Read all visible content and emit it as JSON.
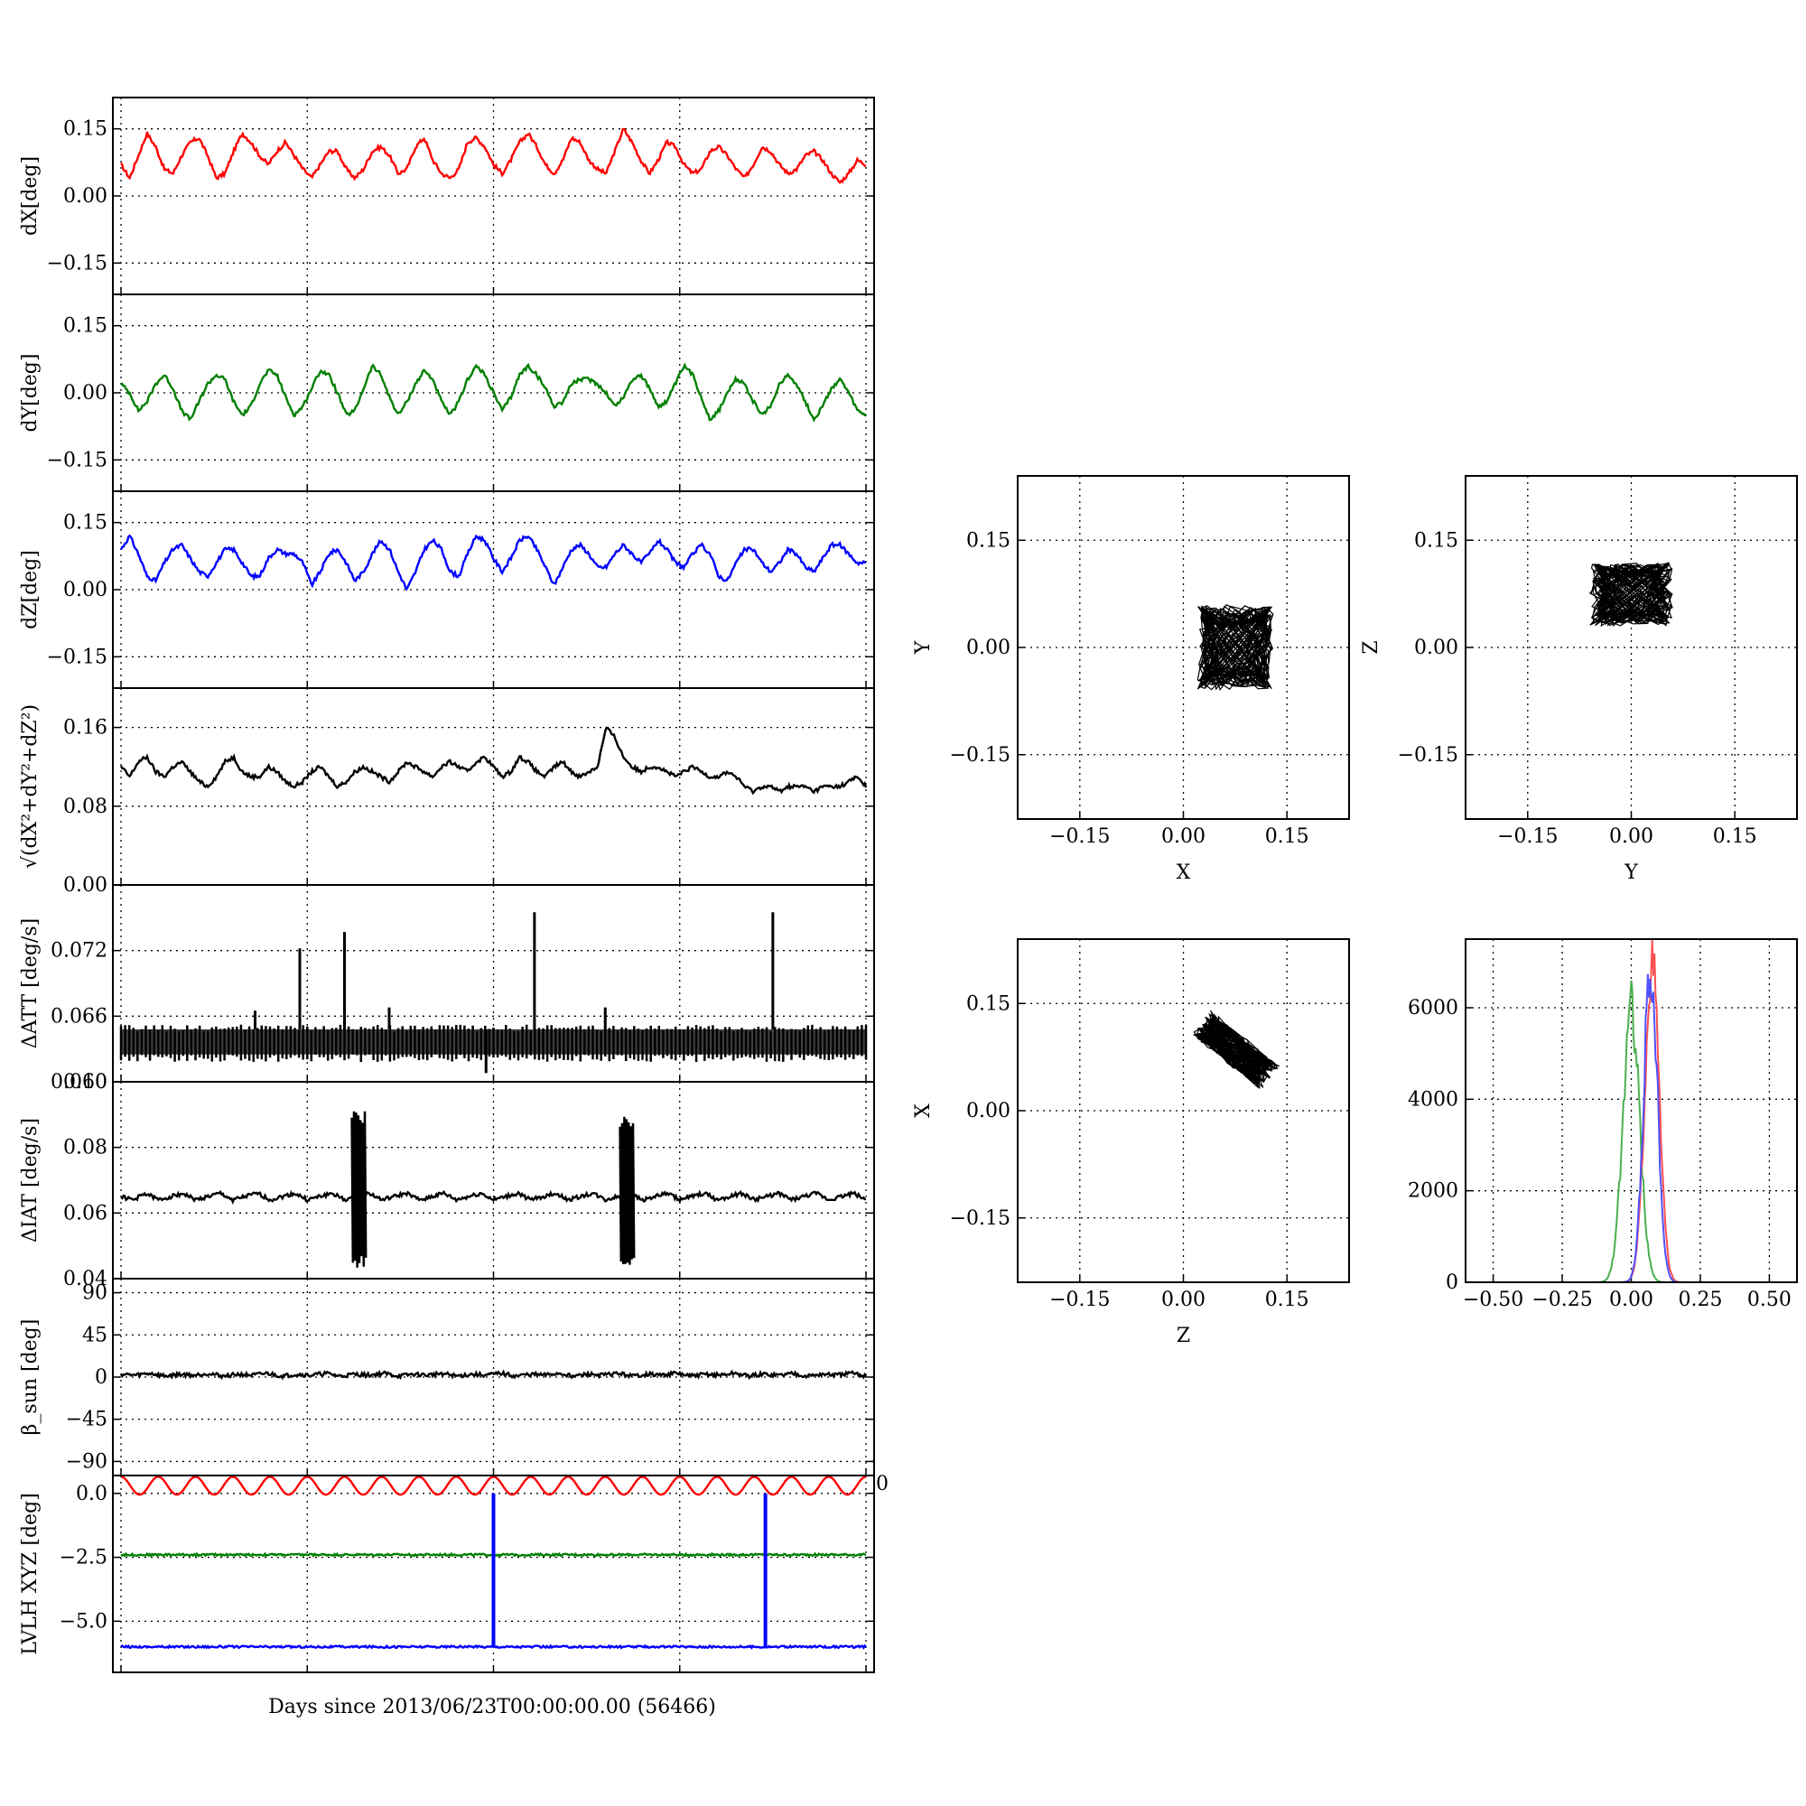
{
  "figure": {
    "xlabel": "Days since 2013/06/23T00:00:00.00 (56466)"
  },
  "chart_data": [
    {
      "id": "dx",
      "type": "line",
      "ylabel": "dX[deg]",
      "ylim": [
        -0.22,
        0.22
      ],
      "yticks": [
        0.15,
        0.0,
        -0.15
      ],
      "ytick_labels": [
        "0.15",
        "0.00",
        "−0.15"
      ],
      "series": [
        {
          "color": "#ff0000",
          "values": [
            0.07,
            0.04,
            0.09,
            0.14,
            0.11,
            0.06,
            0.05,
            0.09,
            0.12,
            0.13,
            0.09,
            0.04,
            0.05,
            0.1,
            0.14,
            0.12,
            0.09,
            0.07,
            0.1,
            0.12,
            0.09,
            0.06,
            0.04,
            0.07,
            0.1,
            0.1,
            0.06,
            0.04,
            0.06,
            0.1,
            0.11,
            0.09,
            0.05,
            0.06,
            0.11,
            0.13,
            0.08,
            0.05,
            0.04,
            0.06,
            0.12,
            0.13,
            0.11,
            0.07,
            0.05,
            0.08,
            0.12,
            0.14,
            0.11,
            0.07,
            0.05,
            0.08,
            0.13,
            0.12,
            0.08,
            0.06,
            0.05,
            0.1,
            0.15,
            0.12,
            0.08,
            0.05,
            0.08,
            0.12,
            0.11,
            0.07,
            0.05,
            0.06,
            0.1,
            0.11,
            0.09,
            0.06,
            0.04,
            0.07,
            0.11,
            0.1,
            0.07,
            0.05,
            0.06,
            0.09,
            0.1,
            0.08,
            0.05,
            0.03,
            0.05,
            0.08,
            0.07
          ]
        }
      ]
    },
    {
      "id": "dy",
      "type": "line",
      "ylabel": "dY[deg]",
      "ylim": [
        -0.22,
        0.22
      ],
      "yticks": [
        0.15,
        0.0,
        -0.15
      ],
      "ytick_labels": [
        "0.15",
        "0.00",
        "−0.15"
      ],
      "series": [
        {
          "color": "#007f00",
          "values": [
            0.02,
            0.0,
            -0.04,
            -0.02,
            0.02,
            0.04,
            0.01,
            -0.04,
            -0.06,
            -0.02,
            0.02,
            0.04,
            0.03,
            -0.02,
            -0.05,
            -0.03,
            0.02,
            0.05,
            0.04,
            -0.01,
            -0.05,
            -0.03,
            0.01,
            0.05,
            0.04,
            0.0,
            -0.05,
            -0.04,
            0.01,
            0.06,
            0.04,
            -0.01,
            -0.05,
            -0.02,
            0.02,
            0.05,
            0.03,
            -0.02,
            -0.05,
            -0.02,
            0.03,
            0.06,
            0.04,
            0.0,
            -0.04,
            -0.01,
            0.04,
            0.06,
            0.04,
            0.01,
            -0.03,
            -0.02,
            0.02,
            0.03,
            0.03,
            0.02,
            0.0,
            -0.03,
            -0.01,
            0.03,
            0.04,
            0.01,
            -0.03,
            -0.02,
            0.02,
            0.06,
            0.04,
            -0.01,
            -0.06,
            -0.04,
            0.0,
            0.03,
            0.02,
            -0.02,
            -0.05,
            -0.03,
            0.02,
            0.04,
            0.02,
            -0.02,
            -0.06,
            -0.03,
            0.01,
            0.03,
            0.0,
            -0.04,
            -0.05
          ]
        }
      ]
    },
    {
      "id": "dz",
      "type": "line",
      "ylabel": "dZ[deg]",
      "ylim": [
        -0.22,
        0.22
      ],
      "yticks": [
        0.15,
        0.0,
        -0.15
      ],
      "ytick_labels": [
        "0.15",
        "0.00",
        "−0.15"
      ],
      "series": [
        {
          "color": "#0000ff",
          "values": [
            0.09,
            0.12,
            0.08,
            0.03,
            0.02,
            0.06,
            0.09,
            0.1,
            0.07,
            0.04,
            0.03,
            0.06,
            0.09,
            0.09,
            0.06,
            0.03,
            0.03,
            0.07,
            0.09,
            0.08,
            0.08,
            0.06,
            0.01,
            0.04,
            0.08,
            0.09,
            0.06,
            0.02,
            0.04,
            0.08,
            0.11,
            0.09,
            0.04,
            0.0,
            0.04,
            0.09,
            0.11,
            0.09,
            0.04,
            0.03,
            0.08,
            0.12,
            0.11,
            0.07,
            0.04,
            0.07,
            0.11,
            0.12,
            0.09,
            0.05,
            0.01,
            0.05,
            0.09,
            0.1,
            0.08,
            0.05,
            0.05,
            0.08,
            0.1,
            0.08,
            0.06,
            0.08,
            0.11,
            0.09,
            0.06,
            0.05,
            0.08,
            0.1,
            0.08,
            0.03,
            0.02,
            0.06,
            0.09,
            0.09,
            0.06,
            0.04,
            0.06,
            0.09,
            0.08,
            0.05,
            0.04,
            0.07,
            0.1,
            0.1,
            0.08,
            0.06,
            0.06
          ]
        }
      ]
    },
    {
      "id": "norm",
      "type": "line",
      "ylabel": "√(dX²+dY²+dZ²)",
      "ylim": [
        0.0,
        0.2
      ],
      "yticks": [
        0.16,
        0.08,
        0.0
      ],
      "ytick_labels": [
        "0.16",
        "0.08",
        "0.00"
      ],
      "series": [
        {
          "color": "#000000",
          "values": [
            0.12,
            0.11,
            0.125,
            0.13,
            0.115,
            0.11,
            0.12,
            0.125,
            0.115,
            0.105,
            0.1,
            0.11,
            0.125,
            0.13,
            0.115,
            0.11,
            0.11,
            0.12,
            0.115,
            0.105,
            0.1,
            0.105,
            0.115,
            0.12,
            0.11,
            0.1,
            0.105,
            0.115,
            0.12,
            0.115,
            0.11,
            0.105,
            0.115,
            0.125,
            0.12,
            0.115,
            0.11,
            0.12,
            0.125,
            0.12,
            0.115,
            0.125,
            0.13,
            0.12,
            0.11,
            0.115,
            0.13,
            0.125,
            0.115,
            0.11,
            0.12,
            0.125,
            0.115,
            0.11,
            0.115,
            0.12,
            0.16,
            0.15,
            0.13,
            0.12,
            0.115,
            0.12,
            0.12,
            0.115,
            0.11,
            0.115,
            0.12,
            0.115,
            0.11,
            0.11,
            0.115,
            0.11,
            0.1,
            0.095,
            0.1,
            0.1,
            0.095,
            0.1,
            0.1,
            0.1,
            0.095,
            0.1,
            0.1,
            0.1,
            0.105,
            0.11,
            0.1
          ]
        }
      ]
    },
    {
      "id": "datt",
      "type": "line",
      "ylabel": "ΔATT [deg/s]",
      "ylim": [
        0.06,
        0.078
      ],
      "yticks": [
        0.072,
        0.066,
        0.06
      ],
      "ytick_labels": [
        "0.072",
        "0.066",
        "0.060"
      ],
      "band": {
        "lo": 0.0625,
        "hi": 0.0648
      },
      "spikes": [
        {
          "x": 0.18,
          "y": 0.0665
        },
        {
          "x": 0.24,
          "y": 0.0722
        },
        {
          "x": 0.3,
          "y": 0.0737
        },
        {
          "x": 0.36,
          "y": 0.0668
        },
        {
          "x": 0.49,
          "y": 0.0608
        },
        {
          "x": 0.555,
          "y": 0.0755
        },
        {
          "x": 0.65,
          "y": 0.0668
        },
        {
          "x": 0.875,
          "y": 0.0755
        }
      ]
    },
    {
      "id": "diat",
      "type": "line",
      "ylabel": "ΔIAT [deg/s]",
      "ylim": [
        0.04,
        0.1
      ],
      "yticks": [
        0.1,
        0.08,
        0.06,
        0.04
      ],
      "ytick_labels": [
        "0.10",
        "0.08",
        "0.06",
        "0.04"
      ],
      "series": [
        {
          "color": "#000000",
          "values": [
            0.065,
            0.064,
            0.066,
            0.064,
            0.065,
            0.066,
            0.064,
            0.065,
            0.066,
            0.064,
            0.065,
            0.066,
            0.064,
            0.065,
            0.066,
            0.064,
            0.065,
            0.066,
            0.064,
            0.065,
            0.066,
            0.064,
            0.065,
            0.066,
            0.064,
            0.065,
            0.066,
            0.064,
            0.065,
            0.066,
            0.064,
            0.065,
            0.066,
            0.064,
            0.065,
            0.066,
            0.064,
            0.065,
            0.066,
            0.064,
            0.065,
            0.066,
            0.064,
            0.065,
            0.066,
            0.064,
            0.065,
            0.066,
            0.064,
            0.065,
            0.066,
            0.064,
            0.065,
            0.066,
            0.064,
            0.065,
            0.066,
            0.064,
            0.065,
            0.066,
            0.064
          ]
        }
      ],
      "bursts": [
        {
          "x": 0.32,
          "lo": 0.043,
          "hi": 0.091
        },
        {
          "x": 0.68,
          "lo": 0.043,
          "hi": 0.09
        }
      ]
    },
    {
      "id": "beta",
      "type": "line",
      "ylabel": "β_sun [deg]",
      "ylim": [
        -105,
        105
      ],
      "yticks": [
        90,
        45,
        0,
        -45,
        -90
      ],
      "ytick_labels": [
        "90",
        "45",
        "0",
        "−45",
        "−90"
      ],
      "series": [
        {
          "color": "#000000",
          "values": [
            3,
            2,
            4,
            1,
            3,
            2,
            4,
            1,
            3,
            2,
            4,
            1,
            3,
            2,
            4,
            1,
            3,
            2,
            4,
            1,
            3,
            2,
            4,
            1,
            3,
            2,
            4,
            1,
            3,
            2,
            4,
            1,
            3,
            2,
            4,
            1,
            3,
            2,
            4,
            1,
            3,
            2,
            4,
            1,
            3,
            2,
            4,
            1,
            3,
            2,
            4,
            1
          ]
        }
      ]
    },
    {
      "id": "lvlh",
      "type": "line",
      "ylabel": "LVLH XYZ [deg]",
      "ylim": [
        -7.0,
        0.7
      ],
      "yticks": [
        0.0,
        -2.5,
        -5.0
      ],
      "ytick_labels": [
        "0.0",
        "−2.5",
        "−5.0"
      ],
      "right_tick_label": "0",
      "series": [
        {
          "color": "#ff0000",
          "kind": "sine",
          "base": 0.3,
          "amp": 0.35,
          "cycles": 20
        },
        {
          "color": "#007f00",
          "kind": "flat",
          "base": -2.4,
          "amp": 0.04,
          "cycles": 20
        },
        {
          "color": "#0000ff",
          "kind": "flat",
          "base": -6.0,
          "amp": 0.04,
          "cycles": 20
        }
      ],
      "drops": [
        {
          "x": 0.5,
          "from": 0.0,
          "to": -6.0
        },
        {
          "x": 0.865,
          "from": 0.0,
          "to": -6.0
        }
      ]
    },
    {
      "id": "xy",
      "type": "scatter",
      "xlabel": "X",
      "ylabel": "Y",
      "xlim": [
        -0.24,
        0.24
      ],
      "ylim": [
        -0.24,
        0.24
      ],
      "ticks": [
        -0.15,
        0.0,
        0.15
      ],
      "tick_labels": [
        "−0.15",
        "0.00",
        "0.15"
      ],
      "cluster": {
        "cx": 0.075,
        "cy": 0.0,
        "rx": 0.055,
        "ry": 0.06,
        "angle": 0
      }
    },
    {
      "id": "yz",
      "type": "scatter",
      "xlabel": "Y",
      "ylabel": "Z",
      "xlim": [
        -0.24,
        0.24
      ],
      "ylim": [
        -0.24,
        0.24
      ],
      "ticks": [
        -0.15,
        0.0,
        0.15
      ],
      "tick_labels": [
        "−0.15",
        "0.00",
        "0.15"
      ],
      "cluster": {
        "cx": 0.0,
        "cy": 0.075,
        "rx": 0.06,
        "ry": 0.045,
        "angle": 0
      }
    },
    {
      "id": "zx",
      "type": "scatter",
      "xlabel": "Z",
      "ylabel": "X",
      "xlim": [
        -0.24,
        0.24
      ],
      "ylim": [
        -0.24,
        0.24
      ],
      "ticks": [
        -0.15,
        0.0,
        0.15
      ],
      "tick_labels": [
        "−0.15",
        "0.00",
        "0.15"
      ],
      "cluster": {
        "cx": 0.075,
        "cy": 0.085,
        "rx": 0.065,
        "ry": 0.022,
        "angle": -38
      }
    },
    {
      "id": "hist",
      "type": "bar",
      "xlim": [
        -0.6,
        0.6
      ],
      "ylim": [
        0,
        7500
      ],
      "xticks": [
        -0.5,
        -0.25,
        0.0,
        0.25,
        0.5
      ],
      "xtick_labels": [
        "−0.50",
        "−0.25",
        "0.00",
        "0.25",
        "0.50"
      ],
      "yticks": [
        0,
        2000,
        4000,
        6000
      ],
      "ytick_labels": [
        "0",
        "2000",
        "4000",
        "6000"
      ],
      "series": [
        {
          "color": "#4caf50",
          "mean": 0.0,
          "sd": 0.03,
          "peak": 6000
        },
        {
          "color": "#ff5050",
          "mean": 0.075,
          "sd": 0.026,
          "peak": 7000
        },
        {
          "color": "#5050ff",
          "mean": 0.07,
          "sd": 0.025,
          "peak": 6800
        }
      ]
    }
  ]
}
